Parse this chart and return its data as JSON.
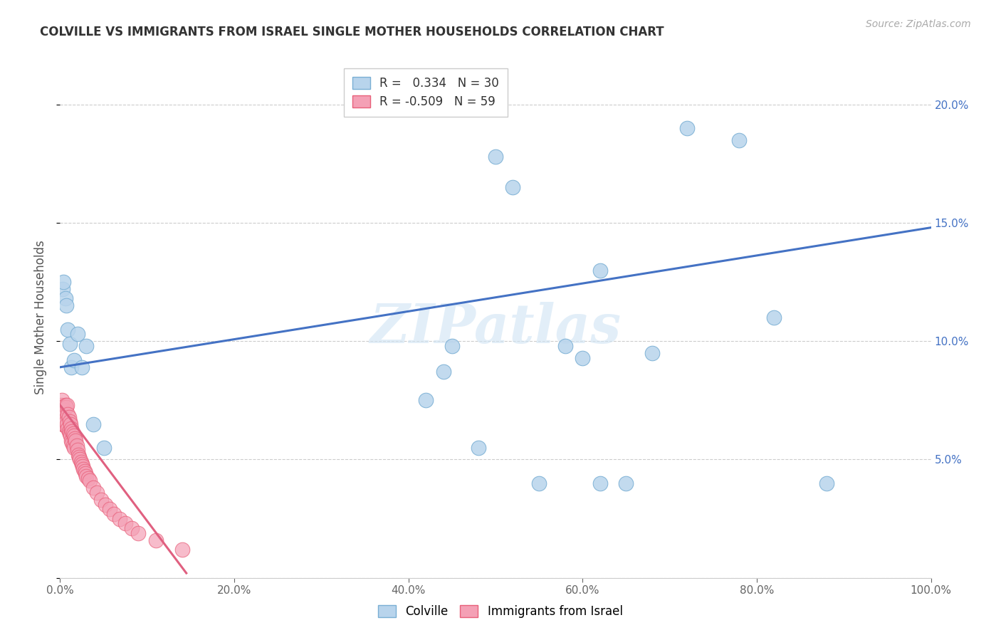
{
  "title": "COLVILLE VS IMMIGRANTS FROM ISRAEL SINGLE MOTHER HOUSEHOLDS CORRELATION CHART",
  "source": "Source: ZipAtlas.com",
  "ylabel": "Single Mother Households",
  "xlim": [
    0,
    1.0
  ],
  "ylim": [
    0,
    0.22
  ],
  "xticks": [
    0.0,
    0.2,
    0.4,
    0.6,
    0.8,
    1.0
  ],
  "xticklabels": [
    "0.0%",
    "20.0%",
    "40.0%",
    "60.0%",
    "80.0%",
    "100.0%"
  ],
  "yticks": [
    0.0,
    0.05,
    0.1,
    0.15,
    0.2
  ],
  "yticklabels": [
    "",
    "5.0%",
    "10.0%",
    "15.0%",
    "20.0%"
  ],
  "colville_color": "#b8d4ec",
  "colville_edge": "#7aafd4",
  "israel_color": "#f4a0b5",
  "israel_edge": "#e8607a",
  "colville_R": 0.334,
  "colville_N": 30,
  "israel_R": -0.509,
  "israel_N": 59,
  "colville_line_color": "#4472c4",
  "israel_line_color": "#e06080",
  "watermark": "ZIPatlas",
  "colville_points_x": [
    0.003,
    0.004,
    0.006,
    0.007,
    0.009,
    0.011,
    0.013,
    0.016,
    0.02,
    0.025,
    0.03,
    0.038,
    0.05,
    0.42,
    0.44,
    0.5,
    0.52,
    0.58,
    0.62,
    0.65,
    0.72,
    0.78,
    0.82,
    0.88,
    0.62,
    0.68,
    0.45,
    0.48,
    0.55,
    0.6
  ],
  "colville_points_y": [
    0.122,
    0.125,
    0.118,
    0.115,
    0.105,
    0.099,
    0.089,
    0.092,
    0.103,
    0.089,
    0.098,
    0.065,
    0.055,
    0.075,
    0.087,
    0.178,
    0.165,
    0.098,
    0.13,
    0.04,
    0.19,
    0.185,
    0.11,
    0.04,
    0.04,
    0.095,
    0.098,
    0.055,
    0.04,
    0.093
  ],
  "israel_points_x": [
    0.001,
    0.002,
    0.002,
    0.003,
    0.003,
    0.004,
    0.004,
    0.005,
    0.005,
    0.006,
    0.006,
    0.007,
    0.007,
    0.008,
    0.008,
    0.009,
    0.009,
    0.01,
    0.01,
    0.011,
    0.011,
    0.012,
    0.012,
    0.013,
    0.013,
    0.014,
    0.014,
    0.015,
    0.015,
    0.016,
    0.016,
    0.017,
    0.018,
    0.019,
    0.02,
    0.021,
    0.022,
    0.023,
    0.024,
    0.025,
    0.026,
    0.027,
    0.028,
    0.029,
    0.03,
    0.032,
    0.034,
    0.038,
    0.042,
    0.047,
    0.052,
    0.057,
    0.062,
    0.068,
    0.075,
    0.082,
    0.09,
    0.11,
    0.14
  ],
  "israel_points_y": [
    0.073,
    0.075,
    0.068,
    0.072,
    0.065,
    0.071,
    0.065,
    0.071,
    0.065,
    0.073,
    0.067,
    0.072,
    0.066,
    0.073,
    0.065,
    0.069,
    0.063,
    0.068,
    0.062,
    0.066,
    0.061,
    0.065,
    0.06,
    0.063,
    0.058,
    0.062,
    0.057,
    0.061,
    0.056,
    0.06,
    0.055,
    0.059,
    0.058,
    0.056,
    0.054,
    0.052,
    0.051,
    0.05,
    0.049,
    0.048,
    0.047,
    0.046,
    0.045,
    0.044,
    0.043,
    0.042,
    0.041,
    0.038,
    0.036,
    0.033,
    0.031,
    0.029,
    0.027,
    0.025,
    0.023,
    0.021,
    0.019,
    0.016,
    0.012
  ],
  "colville_line_x": [
    0.0,
    1.0
  ],
  "colville_line_y": [
    0.089,
    0.148
  ],
  "israel_line_x": [
    0.0,
    0.145
  ],
  "israel_line_y": [
    0.073,
    0.002
  ],
  "background_color": "#ffffff",
  "grid_color": "#cccccc"
}
